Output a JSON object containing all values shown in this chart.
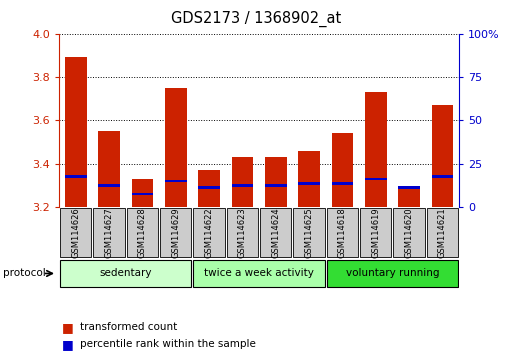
{
  "title": "GDS2173 / 1368902_at",
  "samples": [
    "GSM114626",
    "GSM114627",
    "GSM114628",
    "GSM114629",
    "GSM114622",
    "GSM114623",
    "GSM114624",
    "GSM114625",
    "GSM114618",
    "GSM114619",
    "GSM114620",
    "GSM114621"
  ],
  "red_bar_top": [
    3.89,
    3.55,
    3.33,
    3.75,
    3.37,
    3.43,
    3.43,
    3.46,
    3.54,
    3.73,
    3.29,
    3.67
  ],
  "blue_marker": [
    3.34,
    3.3,
    3.26,
    3.32,
    3.29,
    3.3,
    3.3,
    3.31,
    3.31,
    3.33,
    3.29,
    3.34
  ],
  "bar_bottom": 3.2,
  "ylim_left": [
    3.2,
    4.0
  ],
  "ylim_right": [
    0,
    100
  ],
  "yticks_left": [
    3.2,
    3.4,
    3.6,
    3.8,
    4.0
  ],
  "yticks_right": [
    0,
    25,
    50,
    75,
    100
  ],
  "ytick_labels_right": [
    "0",
    "25",
    "50",
    "75",
    "100%"
  ],
  "groups": [
    {
      "label": "sedentary",
      "indices": [
        0,
        1,
        2,
        3
      ],
      "color": "#ccffcc"
    },
    {
      "label": "twice a week activity",
      "indices": [
        4,
        5,
        6,
        7
      ],
      "color": "#aaffaa"
    },
    {
      "label": "voluntary running",
      "indices": [
        8,
        9,
        10,
        11
      ],
      "color": "#33dd33"
    }
  ],
  "red_color": "#cc2200",
  "blue_color": "#0000cc",
  "bar_width": 0.65,
  "blue_bar_height": 0.012,
  "xlabels_bg": "#cccccc"
}
